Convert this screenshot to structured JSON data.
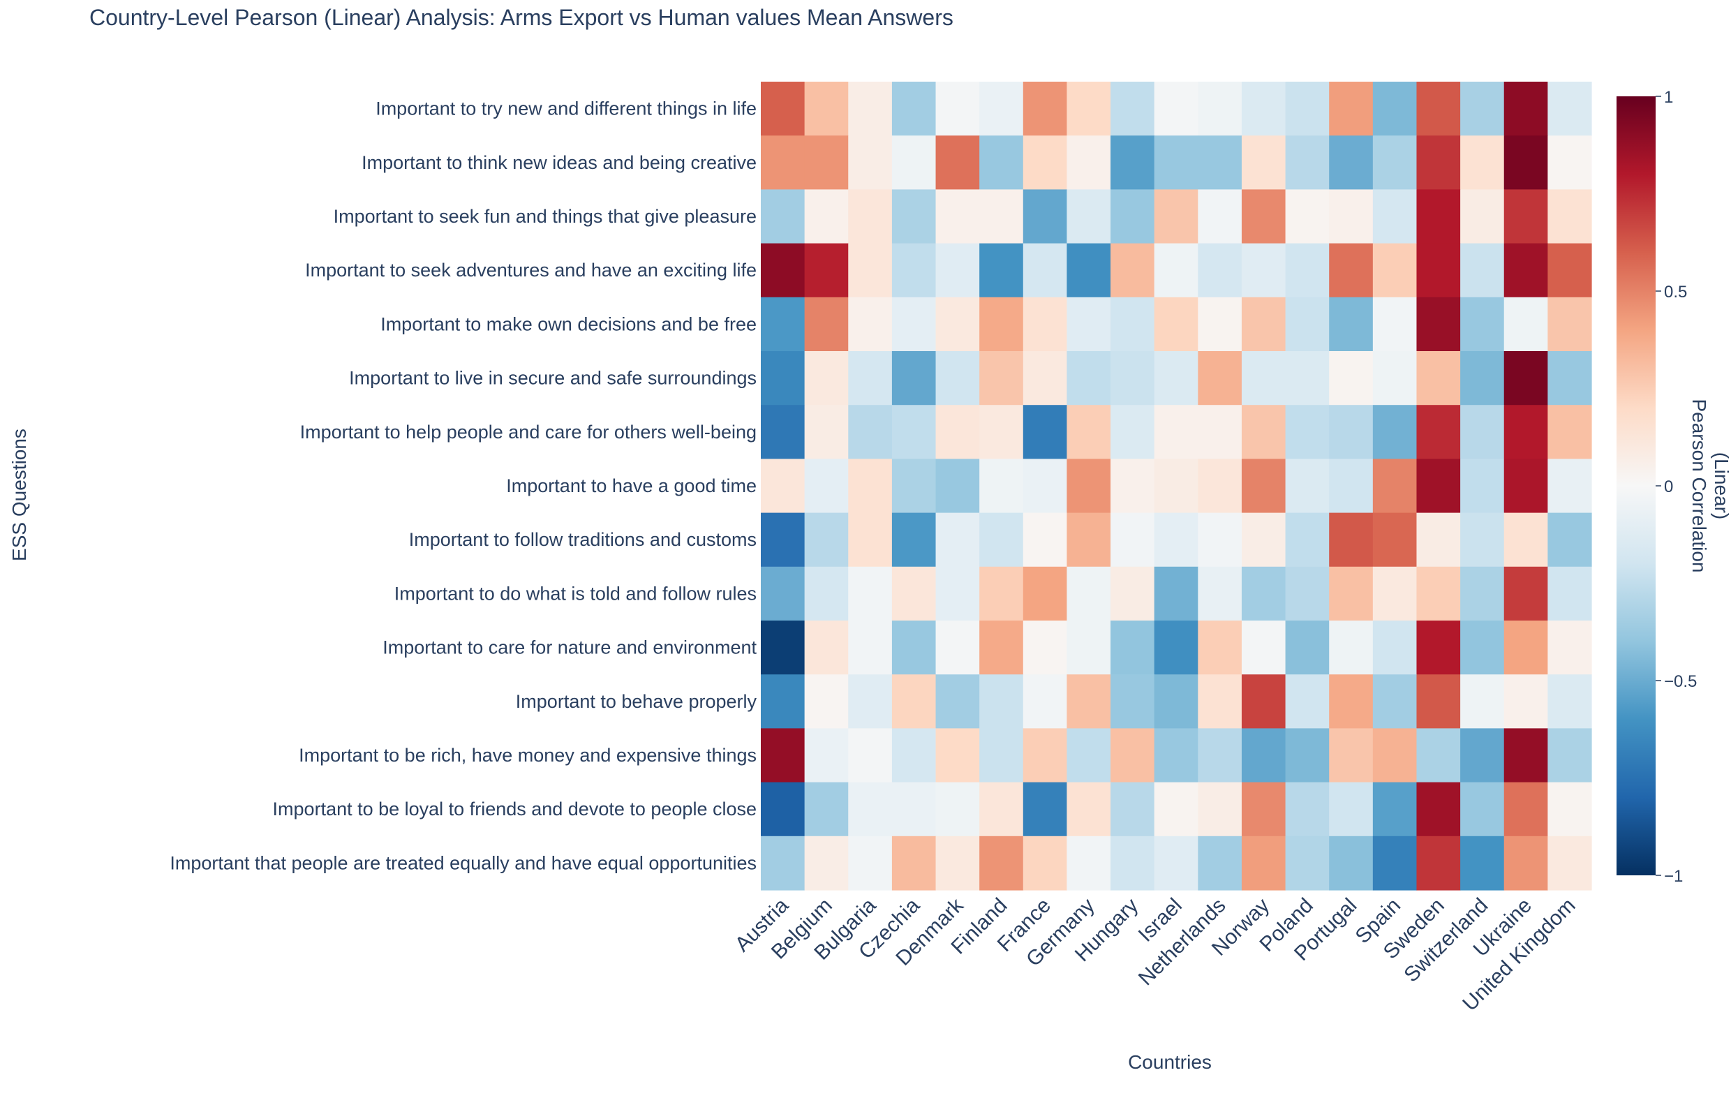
{
  "chart_data": {
    "type": "heatmap",
    "title": "Country-Level Pearson (Linear) Analysis: Arms Export vs Human values Mean Answers",
    "xlabel": "Countries",
    "ylabel": "ESS Questions",
    "colorbar": {
      "title_line1": "Pearson Correlation",
      "title_line2": "(Linear)",
      "range": [
        -1,
        1
      ],
      "ticks": [
        1,
        0.5,
        0,
        -0.5,
        -1
      ],
      "tick_labels": [
        "1",
        "0.5",
        "0",
        "−0.5",
        "−1"
      ],
      "colorscale": "RdBu"
    },
    "countries": [
      "Austria",
      "Belgium",
      "Bulgaria",
      "Czechia",
      "Denmark",
      "Finland",
      "France",
      "Germany",
      "Hungary",
      "Israel",
      "Netherlands",
      "Norway",
      "Poland",
      "Portugal",
      "Spain",
      "Sweden",
      "Switzerland",
      "Ukraine",
      "United Kingdom"
    ],
    "questions": [
      "Important to try new and different things in life",
      "Important to think new ideas and being creative",
      "Important to seek fun and things that give pleasure",
      "Important to seek adventures and have an exciting life",
      "Important to make own decisions and be free",
      "Important to live in secure and safe surroundings",
      "Important to help people and care for others well-being",
      "Important to have a good time",
      "Important to follow traditions and customs",
      "Important to do what is told and follow rules",
      "Important to care for nature and environment",
      "Important to behave properly",
      "Important to be rich, have money and expensive things",
      "Important to be loyal to friends and devote to people close",
      "Important that people are treated equally and have equal opportunities"
    ],
    "values": [
      [
        0.6,
        0.3,
        0.07,
        -0.35,
        -0.02,
        -0.07,
        0.45,
        0.2,
        -0.25,
        -0.02,
        -0.05,
        -0.15,
        -0.22,
        0.42,
        -0.45,
        0.62,
        -0.33,
        0.9,
        -0.15
      ],
      [
        0.45,
        0.45,
        0.07,
        -0.05,
        0.55,
        -0.38,
        0.2,
        0.05,
        -0.55,
        -0.38,
        -0.38,
        0.15,
        -0.28,
        -0.5,
        -0.32,
        0.72,
        0.15,
        0.95,
        0.02
      ],
      [
        -0.35,
        0.05,
        0.12,
        -0.32,
        0.05,
        0.05,
        -0.52,
        -0.15,
        -0.38,
        0.28,
        -0.03,
        0.48,
        0.03,
        0.05,
        -0.18,
        0.8,
        0.08,
        0.72,
        0.15
      ],
      [
        0.9,
        0.78,
        0.12,
        -0.25,
        -0.12,
        -0.6,
        -0.18,
        -0.62,
        0.32,
        -0.05,
        -0.18,
        -0.12,
        -0.2,
        0.55,
        0.25,
        0.8,
        -0.22,
        0.85,
        0.6
      ],
      [
        -0.58,
        0.5,
        0.05,
        -0.1,
        0.1,
        0.38,
        0.15,
        -0.12,
        -0.2,
        0.22,
        0.03,
        0.28,
        -0.22,
        -0.45,
        -0.03,
        0.87,
        -0.38,
        -0.05,
        0.28
      ],
      [
        -0.65,
        0.1,
        -0.18,
        -0.52,
        -0.2,
        0.28,
        0.1,
        -0.25,
        -0.22,
        -0.15,
        0.35,
        -0.15,
        -0.15,
        0.03,
        -0.05,
        0.3,
        -0.45,
        0.95,
        -0.38
      ],
      [
        -0.72,
        0.08,
        -0.28,
        -0.25,
        0.12,
        0.1,
        -0.7,
        0.25,
        -0.15,
        0.05,
        0.05,
        0.28,
        -0.25,
        -0.28,
        -0.48,
        0.75,
        -0.28,
        0.8,
        0.3
      ],
      [
        0.12,
        -0.1,
        0.15,
        -0.32,
        -0.38,
        -0.05,
        -0.07,
        0.45,
        0.05,
        0.08,
        0.12,
        0.5,
        -0.15,
        -0.2,
        0.5,
        0.85,
        -0.25,
        0.82,
        -0.08
      ],
      [
        -0.75,
        -0.28,
        0.15,
        -0.58,
        -0.1,
        -0.2,
        0.02,
        0.35,
        -0.03,
        -0.1,
        -0.03,
        0.07,
        -0.25,
        0.62,
        0.58,
        0.08,
        -0.22,
        0.15,
        -0.38
      ],
      [
        -0.5,
        -0.18,
        -0.03,
        0.12,
        -0.1,
        0.25,
        0.4,
        -0.05,
        0.08,
        -0.48,
        -0.08,
        -0.35,
        -0.28,
        0.3,
        0.1,
        0.25,
        -0.32,
        0.7,
        -0.2
      ],
      [
        -0.95,
        0.12,
        -0.03,
        -0.38,
        -0.02,
        0.38,
        0.02,
        -0.05,
        -0.4,
        -0.62,
        0.25,
        -0.02,
        -0.42,
        -0.05,
        -0.2,
        0.8,
        -0.4,
        0.4,
        0.05
      ],
      [
        -0.65,
        0.02,
        -0.12,
        0.22,
        -0.35,
        -0.22,
        -0.03,
        0.3,
        -0.38,
        -0.45,
        0.15,
        0.68,
        -0.2,
        0.38,
        -0.35,
        0.62,
        -0.05,
        0.05,
        -0.15
      ],
      [
        0.88,
        -0.07,
        -0.02,
        -0.18,
        0.2,
        -0.22,
        0.25,
        -0.25,
        0.3,
        -0.38,
        -0.28,
        -0.52,
        -0.45,
        0.28,
        0.35,
        -0.32,
        -0.52,
        0.88,
        -0.32
      ],
      [
        -0.82,
        -0.35,
        -0.07,
        -0.07,
        -0.05,
        0.12,
        -0.68,
        0.15,
        -0.28,
        0.03,
        0.07,
        0.48,
        -0.28,
        -0.2,
        -0.55,
        0.85,
        -0.38,
        0.55,
        0.03
      ],
      [
        -0.35,
        0.07,
        -0.03,
        0.32,
        0.1,
        0.45,
        0.22,
        -0.03,
        -0.2,
        -0.12,
        -0.35,
        0.42,
        -0.3,
        -0.42,
        -0.68,
        0.72,
        -0.6,
        0.45,
        0.1
      ]
    ]
  }
}
